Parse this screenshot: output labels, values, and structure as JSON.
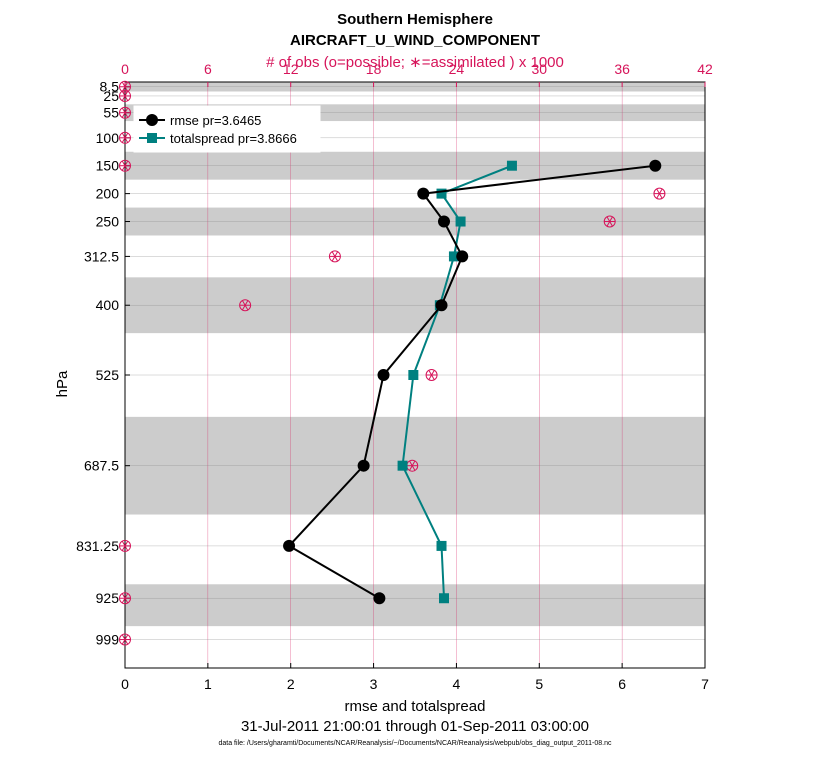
{
  "chart_data": {
    "type": "line",
    "title": "Southern Hemisphere",
    "subtitle": "AIRCRAFT_U_WIND_COMPONENT",
    "top_axis_label": "# of obs (o=possible; ∗=assimilated ) x 1000",
    "xlabel": "rmse and totalspread",
    "ylabel": "hPa",
    "date_range": "31-Jul-2011 21:00:01 through 01-Sep-2011 03:00:00",
    "footer": "data file: /Users/gharamti/Documents/NCAR/Reanalysis/~/Documents/NCAR/Reanalysis/webpub/obs_diag_output_2011-08.nc",
    "xlim": [
      0,
      7
    ],
    "x_ticks": [
      "0",
      "1",
      "2",
      "3",
      "4",
      "5",
      "6",
      "7"
    ],
    "top_xlim": [
      0,
      42
    ],
    "top_ticks": [
      "0",
      "6",
      "12",
      "18",
      "24",
      "30",
      "36",
      "42"
    ],
    "ylim": [
      1050,
      0
    ],
    "levels": [
      8.5,
      25,
      55,
      100,
      150,
      200,
      250,
      312.5,
      400,
      525,
      687.5,
      831.25,
      925,
      999
    ],
    "level_labels": [
      "8.5",
      "25",
      "55",
      "100",
      "150",
      "200",
      "250",
      "312.5",
      "400",
      "525",
      "687.5",
      "831.25",
      "925",
      "999"
    ],
    "shaded_bands": [
      [
        0,
        17
      ],
      [
        40,
        70
      ],
      [
        125,
        175
      ],
      [
        225,
        275
      ],
      [
        350,
        450
      ],
      [
        600,
        775
      ],
      [
        900,
        975
      ]
    ],
    "grid": true,
    "legend_position": "top-left",
    "series": [
      {
        "name": "rmse pr=3.6465",
        "color": "#000000",
        "marker": "circle",
        "points": [
          [
            6.4,
            150
          ],
          [
            3.6,
            200
          ],
          [
            3.85,
            250
          ],
          [
            4.07,
            312.5
          ],
          [
            3.82,
            400
          ],
          [
            3.12,
            525
          ],
          [
            2.88,
            687.5
          ],
          [
            1.98,
            831.25
          ],
          [
            3.07,
            925
          ]
        ]
      },
      {
        "name": "totalspread pr=3.8666",
        "color": "#008080",
        "marker": "square",
        "points": [
          [
            4.67,
            150
          ],
          [
            3.82,
            200
          ],
          [
            4.05,
            250
          ],
          [
            3.97,
            312.5
          ],
          [
            3.8,
            400
          ],
          [
            3.48,
            525
          ],
          [
            3.35,
            687.5
          ],
          [
            3.82,
            831.25
          ],
          [
            3.85,
            925
          ]
        ]
      }
    ],
    "obs_counts": {
      "color": "#d6145a",
      "unit": "x 1000",
      "points": [
        [
          0,
          8.5
        ],
        [
          0,
          25
        ],
        [
          0,
          55
        ],
        [
          0,
          100
        ],
        [
          0,
          150
        ],
        [
          38.7,
          200
        ],
        [
          35.1,
          250
        ],
        [
          15.2,
          312.5
        ],
        [
          8.7,
          400
        ],
        [
          22.2,
          525
        ],
        [
          20.8,
          687.5
        ],
        [
          0,
          831.25
        ],
        [
          0,
          925
        ],
        [
          0,
          999
        ]
      ]
    }
  }
}
